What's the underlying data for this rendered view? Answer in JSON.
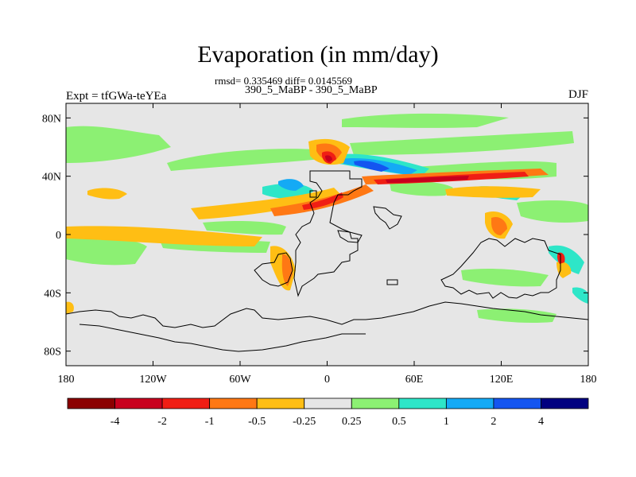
{
  "chart_data": {
    "type": "heatmap",
    "title": "Evaporation (in mm/day)",
    "stats_line": "rmsd= 0.335469 diff= 0.0145569",
    "subtitle": "390_5_MaBP - 390_5_MaBP",
    "left_label": "Expt = tfGWa-teYEa",
    "right_label": "DJF",
    "xlim": [
      -180,
      180
    ],
    "ylim": [
      -90,
      90
    ],
    "x_ticks": [
      {
        "value": -180,
        "label": "180"
      },
      {
        "value": -120,
        "label": "120W"
      },
      {
        "value": -60,
        "label": "60W"
      },
      {
        "value": 0,
        "label": "0"
      },
      {
        "value": 60,
        "label": "60E"
      },
      {
        "value": 120,
        "label": "120E"
      },
      {
        "value": 180,
        "label": "180"
      }
    ],
    "y_ticks": [
      {
        "value": 80,
        "label": "80N"
      },
      {
        "value": 40,
        "label": "40N"
      },
      {
        "value": 0,
        "label": "0"
      },
      {
        "value": -40,
        "label": "40S"
      },
      {
        "value": -80,
        "label": "80S"
      }
    ],
    "colorbar": {
      "boundaries": [
        "-4",
        "-2",
        "-1",
        "-0.5",
        "-0.25",
        "0.25",
        "0.5",
        "1",
        "2",
        "4"
      ],
      "colors": [
        "#8b0000",
        "#c8001e",
        "#f01e14",
        "#ff7814",
        "#ffbe14",
        "#e6e6e6",
        "#8cf073",
        "#2ee6c8",
        "#14aaf5",
        "#1455f0",
        "#000080"
      ]
    },
    "background_color": "#e6e6e6"
  }
}
